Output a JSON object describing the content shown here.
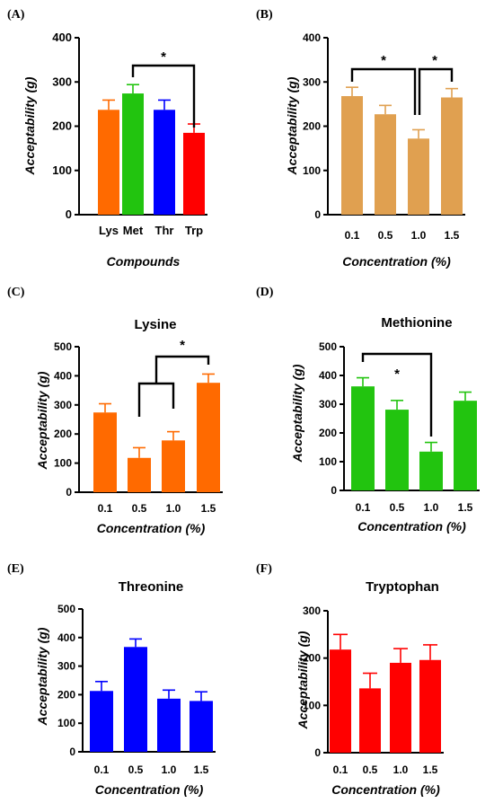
{
  "chart_data": [
    {
      "panel": "(A)",
      "type": "bar",
      "title": "",
      "xlabel": "Compounds",
      "ylabel": "Acceptability (g)",
      "ylim": [
        0,
        400
      ],
      "yticks": [
        0,
        100,
        200,
        300,
        400
      ],
      "categories": [
        "Lys",
        "Met",
        "Thr",
        "Trp"
      ],
      "values": [
        237,
        274,
        237,
        185
      ],
      "errors": [
        22,
        20,
        22,
        20
      ],
      "colors": [
        "#ff6a00",
        "#22c40f",
        "#0000ff",
        "#ff0000"
      ],
      "significance": [
        {
          "from": 1,
          "to": 3,
          "label": "*"
        }
      ],
      "grid": false
    },
    {
      "panel": "(B)",
      "type": "bar",
      "title": "",
      "xlabel": "Concentration (%)",
      "ylabel": "Acceptability (g)",
      "ylim": [
        0,
        400
      ],
      "yticks": [
        0,
        100,
        200,
        300,
        400
      ],
      "categories": [
        "0.1",
        "0.5",
        "1.0",
        "1.5"
      ],
      "values": [
        268,
        227,
        172,
        265
      ],
      "errors": [
        20,
        20,
        20,
        20
      ],
      "colors": [
        "#e0a050",
        "#e0a050",
        "#e0a050",
        "#e0a050"
      ],
      "significance": [
        {
          "from": 0,
          "to": 2,
          "label": "*"
        },
        {
          "from": 2,
          "to": 3,
          "label": "*"
        }
      ],
      "grid": false
    },
    {
      "panel": "(C)",
      "type": "bar",
      "title": "Lysine",
      "xlabel": "Concentration (%)",
      "ylabel": "Acceptability (g)",
      "ylim": [
        0,
        500
      ],
      "yticks": [
        0,
        100,
        200,
        300,
        400,
        500
      ],
      "categories": [
        "0.1",
        "0.5",
        "1.0",
        "1.5"
      ],
      "values": [
        274,
        118,
        178,
        376
      ],
      "errors": [
        30,
        35,
        30,
        30
      ],
      "colors": [
        "#ff6a00",
        "#ff6a00",
        "#ff6a00",
        "#ff6a00"
      ],
      "significance": [
        {
          "bracket": "nested",
          "from": [
            1,
            2
          ],
          "to": 3,
          "label": "*"
        }
      ],
      "grid": false
    },
    {
      "panel": "(D)",
      "type": "bar",
      "title": "Methionine",
      "xlabel": "Concentration (%)",
      "ylabel": "Acceptability (g)",
      "ylim": [
        0,
        500
      ],
      "yticks": [
        0,
        100,
        200,
        300,
        400,
        500
      ],
      "categories": [
        "0.1",
        "0.5",
        "1.0",
        "1.5"
      ],
      "values": [
        362,
        281,
        135,
        312
      ],
      "errors": [
        30,
        32,
        32,
        30
      ],
      "colors": [
        "#22c40f",
        "#22c40f",
        "#22c40f",
        "#22c40f"
      ],
      "significance": [
        {
          "from": 0,
          "to": 2,
          "label": "*"
        }
      ],
      "grid": false
    },
    {
      "panel": "(E)",
      "type": "bar",
      "title": "Threonine",
      "xlabel": "Concentration (%)",
      "ylabel": "Acceptability (g)",
      "ylim": [
        0,
        500
      ],
      "yticks": [
        0,
        100,
        200,
        300,
        400,
        500
      ],
      "categories": [
        "0.1",
        "0.5",
        "1.0",
        "1.5"
      ],
      "values": [
        213,
        367,
        186,
        178
      ],
      "errors": [
        33,
        28,
        30,
        32
      ],
      "colors": [
        "#0000ff",
        "#0000ff",
        "#0000ff",
        "#0000ff"
      ],
      "significance": [],
      "grid": false
    },
    {
      "panel": "(F)",
      "type": "bar",
      "title": "Tryptophan",
      "xlabel": "Concentration (%)",
      "ylabel": "Acceptability (g)",
      "ylim": [
        0,
        300
      ],
      "yticks": [
        0,
        100,
        200,
        300
      ],
      "categories": [
        "0.1",
        "0.5",
        "1.0",
        "1.5"
      ],
      "values": [
        218,
        136,
        190,
        196
      ],
      "errors": [
        32,
        32,
        30,
        32
      ],
      "colors": [
        "#ff0000",
        "#ff0000",
        "#ff0000",
        "#ff0000"
      ],
      "significance": [],
      "grid": false
    }
  ]
}
